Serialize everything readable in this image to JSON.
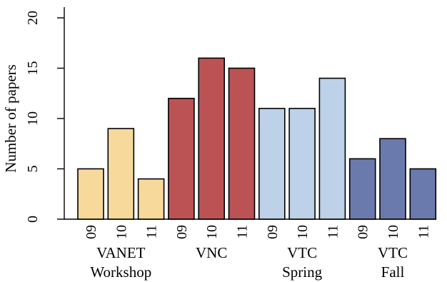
{
  "chart_data": {
    "type": "bar",
    "ylabel": "Number of papers",
    "ylim": [
      0,
      20
    ],
    "yticks": [
      0,
      5,
      10,
      15,
      20
    ],
    "groups": [
      {
        "name_lines": [
          "VANET",
          "Workshop"
        ],
        "color": "#f8d99c",
        "categories": [
          "09",
          "10",
          "11"
        ],
        "values": [
          5,
          9,
          4
        ]
      },
      {
        "name_lines": [
          "VNC"
        ],
        "color": "#bb5254",
        "categories": [
          "09",
          "10",
          "11"
        ],
        "values": [
          12,
          16,
          15
        ]
      },
      {
        "name_lines": [
          "VTC",
          "Spring"
        ],
        "color": "#bdd1e8",
        "categories": [
          "09",
          "10",
          "11"
        ],
        "values": [
          11,
          11,
          14
        ]
      },
      {
        "name_lines": [
          "VTC",
          "Fall"
        ],
        "color": "#6b7aad",
        "categories": [
          "09",
          "10",
          "11"
        ],
        "values": [
          6,
          8,
          5
        ]
      }
    ],
    "legend": "none",
    "grid": false
  }
}
